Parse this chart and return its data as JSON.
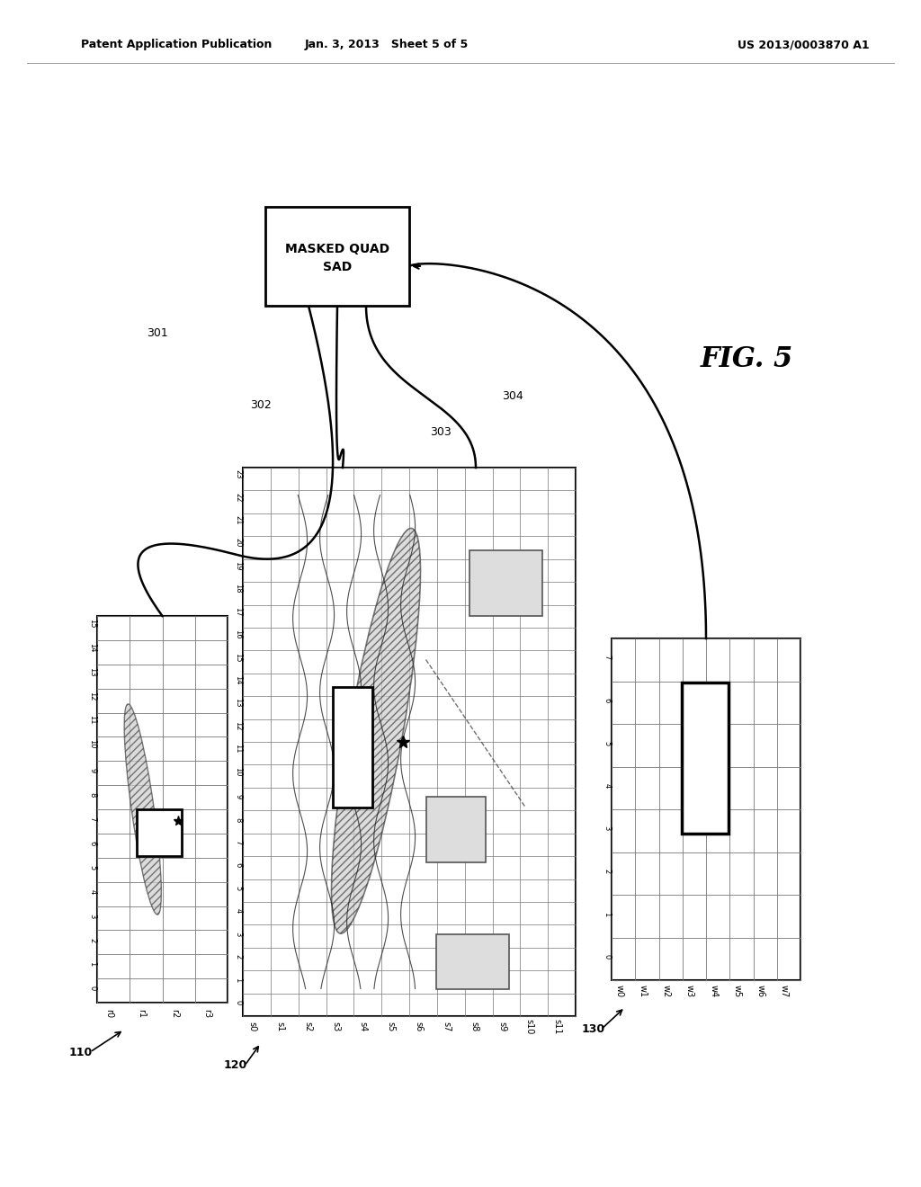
{
  "title_left": "Patent Application Publication",
  "title_center": "Jan. 3, 2013   Sheet 5 of 5",
  "title_right": "US 2013/0003870 A1",
  "fig_label": "FIG. 5",
  "box_label": "MASKED QUAD\nSAD",
  "grid110_xlabel": [
    "r0",
    "r1",
    "r2",
    "r3"
  ],
  "grid110_ylabel": [
    "0",
    "1",
    "2",
    "3",
    "4",
    "5",
    "6",
    "7",
    "8",
    "9",
    "10",
    "11",
    "12",
    "13",
    "14",
    "15"
  ],
  "grid110_label": "110",
  "grid120_xlabel": [
    "s0",
    "s1",
    "s2",
    "s3",
    "s4",
    "s5",
    "s6",
    "s7",
    "s8",
    "s9",
    "s10",
    "s11"
  ],
  "grid120_ylabel": [
    "0",
    "1",
    "2",
    "3",
    "4",
    "5",
    "6",
    "7",
    "8",
    "9",
    "10",
    "11",
    "12",
    "13",
    "14",
    "15",
    "16",
    "17",
    "18",
    "19",
    "20",
    "21",
    "22",
    "23"
  ],
  "grid120_label": "120",
  "grid130_xlabel": [
    "w0",
    "w1",
    "w2",
    "w3",
    "w4",
    "w5",
    "w6",
    "w7"
  ],
  "grid130_ylabel": [
    "0",
    "1",
    "2",
    "3",
    "4",
    "5",
    "6",
    "7"
  ],
  "grid130_label": "130",
  "label301": "301",
  "label302": "302",
  "label303": "303",
  "label304": "304",
  "background_color": "#ffffff",
  "line_color": "#000000",
  "grid_color": "#888888",
  "hatch_color": "#aaaaaa"
}
